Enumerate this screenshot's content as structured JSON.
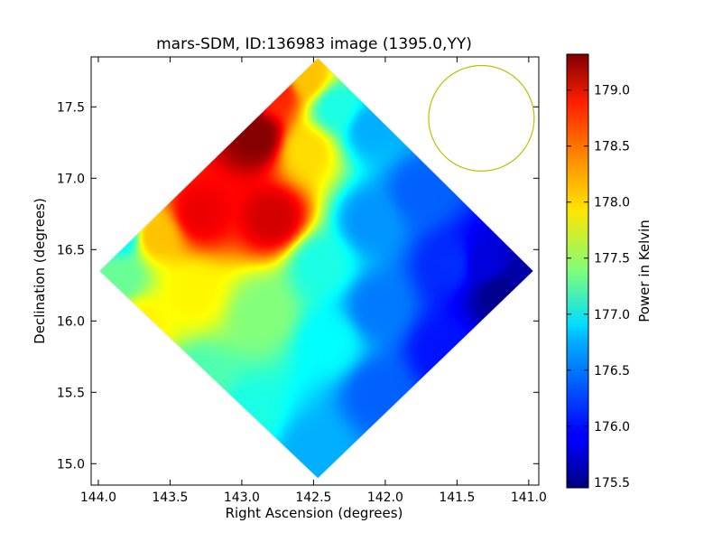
{
  "chart_data": {
    "type": "heatmap",
    "title": "mars-SDM, ID:136983 image (1395.0,YY)",
    "xlabel": "Right Ascension (degrees)",
    "ylabel": "Declination (degrees)",
    "xlim": [
      144.05,
      140.93
    ],
    "ylim": [
      14.85,
      17.85
    ],
    "x_ticks": [
      "144.0",
      "143.5",
      "143.0",
      "142.5",
      "142.0",
      "141.5",
      "141.0"
    ],
    "y_ticks": [
      "15.0",
      "15.5",
      "16.0",
      "16.5",
      "17.0",
      "17.5"
    ],
    "x_tick_values": [
      144.0,
      143.5,
      143.0,
      142.5,
      142.0,
      141.5,
      141.0
    ],
    "y_tick_values": [
      15.0,
      15.5,
      16.0,
      16.5,
      17.0,
      17.5
    ],
    "colorbar": {
      "label": "Power in Kelvin",
      "min": 175.45,
      "max": 179.32,
      "ticks": [
        "175.5",
        "176.0",
        "176.5",
        "177.0",
        "177.5",
        "178.0",
        "178.5",
        "179.0"
      ],
      "tick_values": [
        175.5,
        176.0,
        176.5,
        177.0,
        177.5,
        178.0,
        178.5,
        179.0
      ],
      "colormap": "jet"
    },
    "map_footprint": {
      "shape": "diamond",
      "corners": [
        {
          "ra": 142.47,
          "dec": 17.84
        },
        {
          "ra": 140.97,
          "dec": 16.35
        },
        {
          "ra": 142.47,
          "dec": 14.9
        },
        {
          "ra": 143.99,
          "dec": 16.35
        }
      ]
    },
    "samples": [
      {
        "ra": 142.9,
        "dec": 17.3,
        "value": 179.3
      },
      {
        "ra": 142.78,
        "dec": 16.72,
        "value": 179.0
      },
      {
        "ra": 143.3,
        "dec": 16.75,
        "value": 178.9
      },
      {
        "ra": 142.75,
        "dec": 17.6,
        "value": 178.7
      },
      {
        "ra": 142.55,
        "dec": 17.7,
        "value": 178.1
      },
      {
        "ra": 142.55,
        "dec": 17.2,
        "value": 178.0
      },
      {
        "ra": 143.6,
        "dec": 16.6,
        "value": 178.1
      },
      {
        "ra": 143.35,
        "dec": 16.2,
        "value": 177.9
      },
      {
        "ra": 143.7,
        "dec": 16.0,
        "value": 177.9
      },
      {
        "ra": 143.85,
        "dec": 16.3,
        "value": 177.3
      },
      {
        "ra": 143.85,
        "dec": 16.6,
        "value": 176.9
      },
      {
        "ra": 143.3,
        "dec": 15.6,
        "value": 177.2
      },
      {
        "ra": 142.95,
        "dec": 15.35,
        "value": 177.0
      },
      {
        "ra": 142.85,
        "dec": 16.05,
        "value": 177.4
      },
      {
        "ra": 142.45,
        "dec": 16.4,
        "value": 177.0
      },
      {
        "ra": 142.4,
        "dec": 15.85,
        "value": 176.9
      },
      {
        "ra": 142.5,
        "dec": 15.1,
        "value": 176.6
      },
      {
        "ra": 142.35,
        "dec": 17.5,
        "value": 177.0
      },
      {
        "ra": 142.1,
        "dec": 17.35,
        "value": 176.6
      },
      {
        "ra": 142.1,
        "dec": 16.7,
        "value": 176.5
      },
      {
        "ra": 142.05,
        "dec": 16.1,
        "value": 176.4
      },
      {
        "ra": 142.05,
        "dec": 15.5,
        "value": 176.3
      },
      {
        "ra": 141.75,
        "dec": 16.9,
        "value": 176.3
      },
      {
        "ra": 141.55,
        "dec": 16.4,
        "value": 176.1
      },
      {
        "ra": 141.6,
        "dec": 15.8,
        "value": 176.0
      },
      {
        "ra": 141.3,
        "dec": 16.4,
        "value": 175.8
      },
      {
        "ra": 141.2,
        "dec": 16.2,
        "value": 175.5
      },
      {
        "ra": 141.05,
        "dec": 16.3,
        "value": 175.6
      }
    ],
    "beam_circle": {
      "ra": 141.33,
      "dec": 17.42,
      "radius_deg": 0.37,
      "color": "#bfbf00"
    },
    "grid": false,
    "legend": "none"
  }
}
